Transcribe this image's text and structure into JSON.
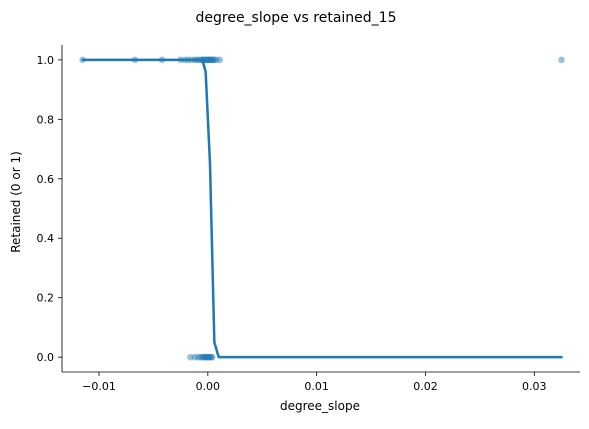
{
  "chart_data": {
    "type": "scatter",
    "title": "degree_slope vs retained_15",
    "xlabel": "degree_slope",
    "ylabel": "Retained (0 or 1)",
    "xlim": [
      -0.0134,
      0.0342
    ],
    "ylim": [
      -0.05,
      1.05
    ],
    "x_ticks": [
      -0.01,
      0.0,
      0.01,
      0.02,
      0.03
    ],
    "x_tick_labels": [
      "−0.01",
      "0.00",
      "0.01",
      "0.02",
      "0.03"
    ],
    "y_ticks": [
      0.0,
      0.2,
      0.4,
      0.6,
      0.8,
      1.0
    ],
    "y_tick_labels": [
      "0.0",
      "0.2",
      "0.4",
      "0.6",
      "0.8",
      "1.0"
    ],
    "grid": false,
    "legend": "none",
    "colors": {
      "points": "#1f77b4",
      "curve": "#1f77b4"
    },
    "point_opacity": 0.45,
    "series": [
      {
        "kind": "scatter",
        "points": [
          {
            "x": -0.0115,
            "y": 1
          },
          {
            "x": -0.0067,
            "y": 1
          },
          {
            "x": -0.0042,
            "y": 1
          },
          {
            "x": -0.0025,
            "y": 1
          },
          {
            "x": -0.0021,
            "y": 1
          },
          {
            "x": -0.0018,
            "y": 1
          },
          {
            "x": -0.0015,
            "y": 1
          },
          {
            "x": -0.0012,
            "y": 1
          },
          {
            "x": -0.001,
            "y": 1
          },
          {
            "x": -0.0008,
            "y": 1
          },
          {
            "x": -0.0006,
            "y": 1
          },
          {
            "x": -0.0005,
            "y": 1
          },
          {
            "x": -0.0004,
            "y": 1
          },
          {
            "x": -0.0003,
            "y": 1
          },
          {
            "x": -0.0002,
            "y": 1
          },
          {
            "x": -0.0001,
            "y": 1
          },
          {
            "x": 0.0,
            "y": 1
          },
          {
            "x": 0.0001,
            "y": 1
          },
          {
            "x": 0.0002,
            "y": 1
          },
          {
            "x": 0.0003,
            "y": 1
          },
          {
            "x": 0.0004,
            "y": 1
          },
          {
            "x": 0.0005,
            "y": 1
          },
          {
            "x": 0.0006,
            "y": 1
          },
          {
            "x": 0.0008,
            "y": 1
          },
          {
            "x": 0.0011,
            "y": 1
          },
          {
            "x": 0.0325,
            "y": 1
          },
          {
            "x": -0.0016,
            "y": 0
          },
          {
            "x": -0.0012,
            "y": 0
          },
          {
            "x": -0.0009,
            "y": 0
          },
          {
            "x": -0.0007,
            "y": 0
          },
          {
            "x": -0.0005,
            "y": 0
          },
          {
            "x": -0.0004,
            "y": 0
          },
          {
            "x": -0.0003,
            "y": 0
          },
          {
            "x": -0.0002,
            "y": 0
          },
          {
            "x": -0.0001,
            "y": 0
          },
          {
            "x": 0.0,
            "y": 0
          },
          {
            "x": 0.0001,
            "y": 0
          },
          {
            "x": 0.0002,
            "y": 0
          },
          {
            "x": 0.0003,
            "y": 0
          },
          {
            "x": 0.0004,
            "y": 0
          }
        ]
      },
      {
        "kind": "line",
        "points": [
          {
            "x": -0.0115,
            "y": 1.0
          },
          {
            "x": -0.0005,
            "y": 1.0
          },
          {
            "x": -0.0002,
            "y": 0.96
          },
          {
            "x": 0.0002,
            "y": 0.65
          },
          {
            "x": 0.0006,
            "y": 0.05
          },
          {
            "x": 0.001,
            "y": 0.0
          },
          {
            "x": 0.0325,
            "y": 0.0
          }
        ]
      }
    ]
  }
}
